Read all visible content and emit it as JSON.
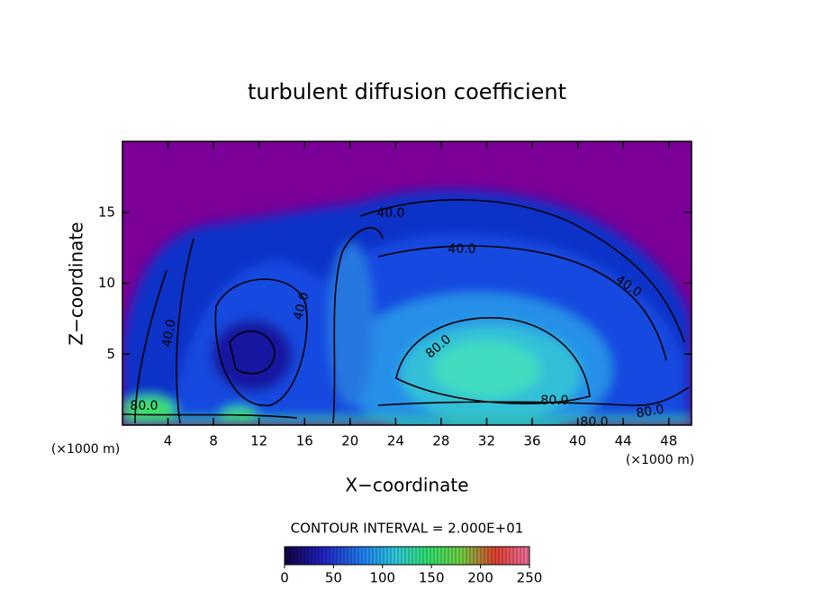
{
  "chart_data": {
    "type": "contour",
    "title": "turbulent diffusion coefficient",
    "xlabel": "X−coordinate",
    "ylabel": "Z−coordinate",
    "x_unit_left": "(×1000 m)",
    "x_unit_right": "(×1000 m)",
    "contour_interval_label": "CONTOUR INTERVAL = 2.000E+01",
    "xlim": [
      0,
      50
    ],
    "xticks": [
      4,
      8,
      12,
      16,
      20,
      24,
      28,
      32,
      36,
      40,
      44,
      48
    ],
    "ylim": [
      0,
      20
    ],
    "yticks": [
      5,
      10,
      15
    ],
    "contour_labels": [
      "40.0",
      "40.0",
      "40.0",
      "80.0",
      "80.0",
      "80.0",
      "40.0",
      "40.0",
      "80.0",
      "80.0"
    ],
    "colorbar": {
      "lim": [
        0,
        250
      ],
      "ticks": [
        0,
        50,
        100,
        150,
        200,
        250
      ]
    }
  }
}
